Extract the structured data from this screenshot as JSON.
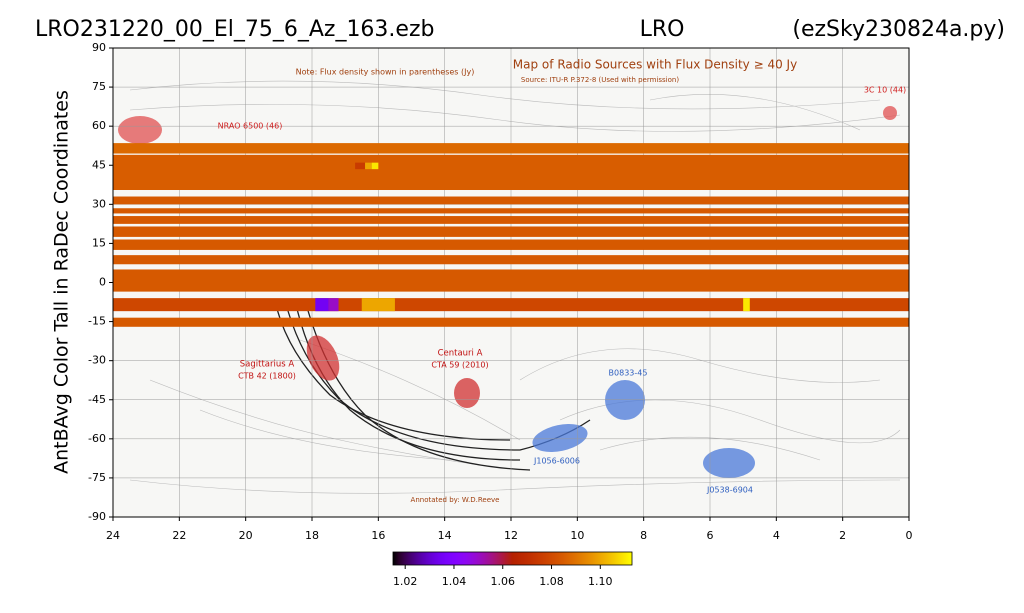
{
  "chart_data": {
    "type": "heatmap",
    "title_left": "LRO231220_00_El_75_6_Az_163.ezb",
    "title_center": "LRO",
    "title_right": "(ezSky230824a.py)",
    "y_label": "AntBAvg Color Tall in RaDec Coordinates",
    "xlim": [
      24,
      0
    ],
    "xticks": [
      24,
      22,
      20,
      18,
      16,
      14,
      12,
      10,
      8,
      6,
      4,
      2,
      0
    ],
    "ylim": [
      -90,
      90
    ],
    "yticks": [
      -90,
      -75,
      -60,
      -45,
      -30,
      -15,
      0,
      15,
      30,
      45,
      60,
      75,
      90
    ],
    "colormap": "gnuplot",
    "clim": [
      1.015,
      1.113
    ],
    "cticks": [
      1.02,
      1.04,
      1.06,
      {
        "value": 1.1,
        "label": "1.10"
      },
      1.08
    ],
    "stripes": [
      {
        "dec": [
          49.5,
          53.5
        ],
        "value": 1.088
      },
      {
        "dec": [
          35.5,
          49
        ],
        "value": 1.085
      },
      {
        "dec": [
          30,
          33
        ],
        "value": 1.084
      },
      {
        "dec": [
          26.5,
          28.5
        ],
        "value": 1.084
      },
      {
        "dec": [
          22.5,
          25.5
        ],
        "value": 1.084
      },
      {
        "dec": [
          17.5,
          21.5
        ],
        "value": 1.084
      },
      {
        "dec": [
          12.5,
          16.5
        ],
        "value": 1.084
      },
      {
        "dec": [
          7,
          10.5
        ],
        "value": 1.084
      },
      {
        "dec": [
          -3.5,
          5
        ],
        "value": 1.084
      },
      {
        "dec": [
          -11,
          -6
        ],
        "value": 1.079
      },
      {
        "dec": [
          -17,
          -13.5
        ],
        "value": 1.084
      }
    ],
    "cells": [
      {
        "ra": [
          16.7,
          16.4
        ],
        "dec": [
          43.5,
          46
        ],
        "value": 1.075
      },
      {
        "ra": [
          16.4,
          16.2
        ],
        "dec": [
          43.5,
          46
        ],
        "value": 1.1
      },
      {
        "ra": [
          16.2,
          16.0
        ],
        "dec": [
          43.5,
          46
        ],
        "value": 1.11
      },
      {
        "ra": [
          17.9,
          17.5
        ],
        "dec": [
          -11,
          -6
        ],
        "value": 1.035
      },
      {
        "ra": [
          17.5,
          17.2
        ],
        "dec": [
          -11,
          -6
        ],
        "value": 1.05
      },
      {
        "ra": [
          16.5,
          15.5
        ],
        "dec": [
          -11,
          -6
        ],
        "value": 1.1
      },
      {
        "ra": [
          5.0,
          4.8
        ],
        "dec": [
          -11,
          -6
        ],
        "value": 1.11
      }
    ],
    "annotations": [
      "Note: Flux density shown in parentheses (Jy)",
      "Map of Radio Sources with Flux Density ≥ 40 Jy",
      "Source: ITU-R P.372-8 (Used with permission)",
      "NRAO 6500 (46)",
      "3C 10 (44)",
      "Sagittarius A",
      "CTB 42 (1800)",
      "Centauri A",
      "CTA 59 (2010)",
      "B0833-45",
      "J1056-6006",
      "J0538-6904",
      "Annotated by: W.D.Reeve"
    ]
  }
}
